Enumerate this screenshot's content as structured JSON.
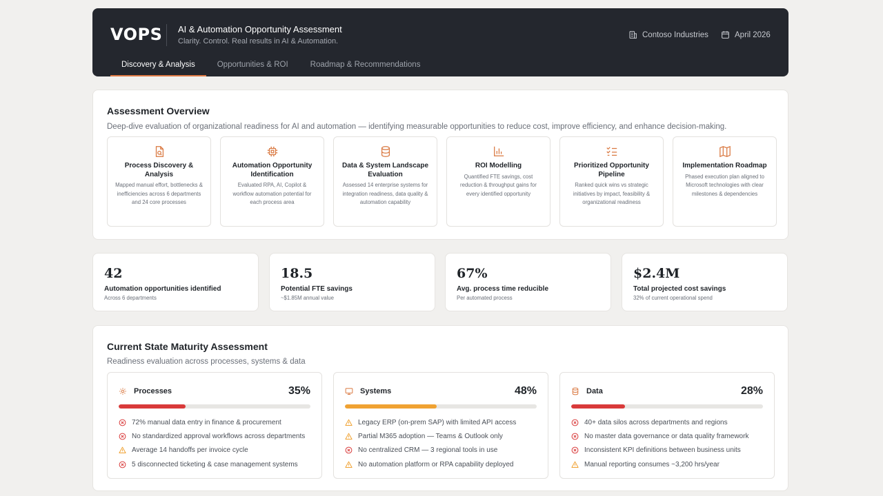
{
  "header": {
    "logo": "VOPS",
    "title": "AI & Automation Opportunity Assessment",
    "tagline": "Clarity. Control. Real results in AI & Automation.",
    "company": "Contoso Industries",
    "date": "April 2026",
    "tabs": [
      {
        "label": "Discovery & Analysis",
        "active": true
      },
      {
        "label": "Opportunities & ROI",
        "active": false
      },
      {
        "label": "Roadmap & Recommendations",
        "active": false
      }
    ]
  },
  "overview": {
    "title": "Assessment Overview",
    "description": "Deep-dive evaluation of organizational readiness for AI and automation — identifying measurable opportunities to reduce cost, improve efficiency, and enhance decision-making.",
    "features": [
      {
        "icon": "file-search-icon",
        "title": "Process Discovery & Analysis",
        "desc": "Mapped manual effort, bottlenecks & inefficiencies across 6 departments and 24 core processes"
      },
      {
        "icon": "cpu-chip-icon",
        "title": "Automation Opportunity Identification",
        "desc": "Evaluated RPA, AI, Copilot & workflow automation potential for each process area"
      },
      {
        "icon": "database-icon",
        "title": "Data & System Landscape Evaluation",
        "desc": "Assessed 14 enterprise systems for integration readiness, data quality & automation capability"
      },
      {
        "icon": "bar-chart-icon",
        "title": "ROI Modelling",
        "desc": "Quantified FTE savings, cost reduction & throughput gains for every identified opportunity"
      },
      {
        "icon": "checklist-icon",
        "title": "Prioritized Opportunity Pipeline",
        "desc": "Ranked quick wins vs strategic initiatives by impact, feasibility & organizational readiness"
      },
      {
        "icon": "map-icon",
        "title": "Implementation Roadmap",
        "desc": "Phased execution plan aligned to Microsoft technologies with clear milestones & dependencies"
      }
    ]
  },
  "kpis": [
    {
      "value": "42",
      "label": "Automation opportunities identified",
      "sub": "Across 6 departments"
    },
    {
      "value": "18.5",
      "label": "Potential FTE savings",
      "sub": "~$1.85M annual value"
    },
    {
      "value": "67%",
      "label": "Avg. process time reducible",
      "sub": "Per automated process"
    },
    {
      "value": "$2.4M",
      "label": "Total projected cost savings",
      "sub": "32% of current operational spend"
    }
  ],
  "maturity": {
    "title": "Current State Maturity Assessment",
    "subtitle": "Readiness evaluation across processes, systems & data",
    "colors": {
      "critical": "#d93a3a",
      "warning": "#f0a232"
    },
    "cards": [
      {
        "icon": "gear-icon",
        "name": "Processes",
        "percent": "35%",
        "level": 0.35,
        "bar_color": "#d93a3a",
        "items": [
          {
            "status": "critical",
            "text": "72% manual data entry in finance & procurement"
          },
          {
            "status": "critical",
            "text": "No standardized approval workflows across departments"
          },
          {
            "status": "warning",
            "text": "Average 14 handoffs per invoice cycle"
          },
          {
            "status": "critical",
            "text": "5 disconnected ticketing & case management systems"
          }
        ]
      },
      {
        "icon": "monitor-icon",
        "name": "Systems",
        "percent": "48%",
        "level": 0.48,
        "bar_color": "#f0a232",
        "items": [
          {
            "status": "warning",
            "text": "Legacy ERP (on-prem SAP) with limited API access"
          },
          {
            "status": "warning",
            "text": "Partial M365 adoption — Teams & Outlook only"
          },
          {
            "status": "critical",
            "text": "No centralized CRM — 3 regional tools in use"
          },
          {
            "status": "warning",
            "text": "No automation platform or RPA capability deployed"
          }
        ]
      },
      {
        "icon": "database-icon",
        "name": "Data",
        "percent": "28%",
        "level": 0.28,
        "bar_color": "#d93a3a",
        "items": [
          {
            "status": "critical",
            "text": "40+ data silos across departments and regions"
          },
          {
            "status": "critical",
            "text": "No master data governance or data quality framework"
          },
          {
            "status": "critical",
            "text": "Inconsistent KPI definitions between business units"
          },
          {
            "status": "warning",
            "text": "Manual reporting consumes ~3,200 hrs/year"
          }
        ]
      }
    ]
  }
}
